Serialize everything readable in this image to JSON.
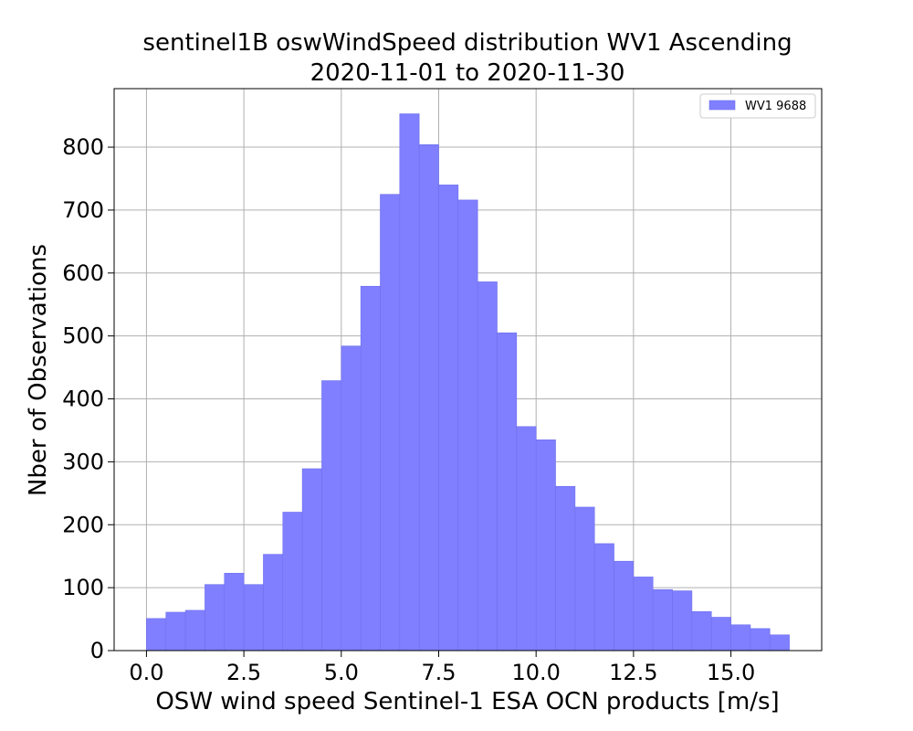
{
  "chart_data": {
    "type": "bar",
    "title_line1": "sentinel1B oswWindSpeed distribution WV1 Ascending",
    "title_line2": "2020-11-01 to 2020-11-30",
    "xlabel": "OSW wind speed Sentinel-1 ESA OCN products [m/s]",
    "ylabel": "Nber of Observations",
    "xlim": [
      -0.83,
      17.33
    ],
    "ylim": [
      0,
      893
    ],
    "xticks": [
      "0.0",
      "2.5",
      "5.0",
      "7.5",
      "10.0",
      "12.5",
      "15.0"
    ],
    "xtick_values": [
      0,
      2.5,
      5,
      7.5,
      10,
      12.5,
      15
    ],
    "yticks": [
      "0",
      "100",
      "200",
      "300",
      "400",
      "500",
      "600",
      "700",
      "800"
    ],
    "ytick_values": [
      0,
      100,
      200,
      300,
      400,
      500,
      600,
      700,
      800
    ],
    "grid": true,
    "bin_width": 0.5,
    "bin_starts": [
      0,
      0.5,
      1,
      1.5,
      2,
      2.5,
      3,
      3.5,
      4,
      4.5,
      5,
      5.5,
      6,
      6.5,
      7,
      7.5,
      8,
      8.5,
      9,
      9.5,
      10,
      10.5,
      11,
      11.5,
      12,
      12.5,
      13,
      13.5,
      14,
      14.5,
      15,
      15.5,
      16
    ],
    "values": [
      51,
      61,
      64,
      105,
      123,
      105,
      153,
      220,
      289,
      429,
      484,
      579,
      725,
      853,
      804,
      740,
      716,
      586,
      505,
      356,
      335,
      261,
      228,
      170,
      142,
      117,
      97,
      95,
      62,
      53,
      41,
      35,
      25
    ],
    "legend": {
      "label": "WV1 9688",
      "position": "upper-right"
    },
    "colors": {
      "bar": "#7f7fff",
      "grid": "#b0b0b0"
    }
  }
}
